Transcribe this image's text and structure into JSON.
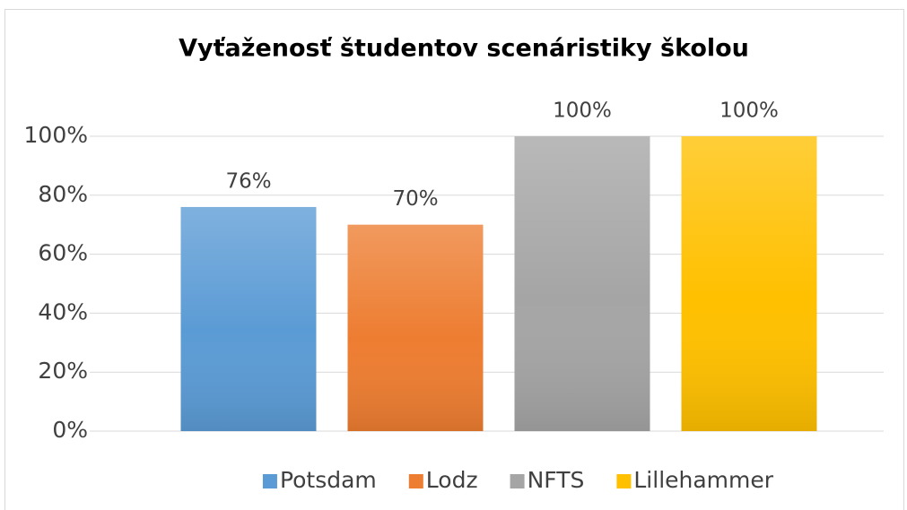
{
  "chart_data": {
    "type": "bar",
    "title": "Vyťaženosť študentov scenáristiky školou",
    "categories": [
      null
    ],
    "series": [
      {
        "name": "Potsdam",
        "color": "#5b9bd5",
        "values": [
          76
        ],
        "value_labels": [
          "76%"
        ]
      },
      {
        "name": "Lodz",
        "color": "#ed7d31",
        "values": [
          70
        ],
        "value_labels": [
          "70%"
        ]
      },
      {
        "name": "NFTS",
        "color": "#a5a5a5",
        "values": [
          100
        ],
        "value_labels": [
          "100%"
        ]
      },
      {
        "name": "Lillehammer",
        "color": "#ffc000",
        "values": [
          100
        ],
        "value_labels": [
          "100%"
        ]
      }
    ],
    "ylim": [
      0,
      100
    ],
    "yticks": [
      {
        "value": 0,
        "label": "0%"
      },
      {
        "value": 20,
        "label": "20%"
      },
      {
        "value": 40,
        "label": "40%"
      },
      {
        "value": 60,
        "label": "60%"
      },
      {
        "value": 80,
        "label": "80%"
      },
      {
        "value": 100,
        "label": "100%"
      }
    ],
    "grid": true,
    "legend": "bottom"
  }
}
